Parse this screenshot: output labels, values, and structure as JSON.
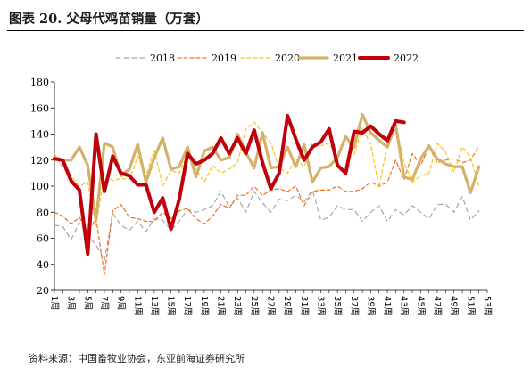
{
  "header": {
    "title": "图表 20. 父母代鸡苗销量（万套）"
  },
  "footer": {
    "source": "资料来源：中国畜牧业协会，东亚前海证券研究所"
  },
  "chart_data": {
    "type": "line",
    "title": "",
    "xlabel": "",
    "ylabel": "",
    "ylim": [
      20,
      180
    ],
    "yticks": [
      20,
      40,
      60,
      80,
      100,
      120,
      140,
      160,
      180
    ],
    "xtick_labels": [
      "1周",
      "3周",
      "5周",
      "7周",
      "9周",
      "11周",
      "13周",
      "15周",
      "17周",
      "19周",
      "21周",
      "23周",
      "25周",
      "27周",
      "29周",
      "31周",
      "33周",
      "35周",
      "37周",
      "39周",
      "41周",
      "43周",
      "45周",
      "47周",
      "49周",
      "51周",
      "53周"
    ],
    "grid": false,
    "legend_position": "top",
    "series": [
      {
        "name": "2018",
        "color": "#a6a6a6",
        "dash": "dash-long",
        "x": [
          1,
          2,
          3,
          4,
          5,
          6,
          7,
          8,
          9,
          10,
          11,
          12,
          13,
          14,
          15,
          16,
          17,
          18,
          19,
          20,
          21,
          22,
          23,
          24,
          25,
          26,
          27,
          28,
          29,
          30,
          31,
          32,
          33,
          34,
          35,
          36,
          37,
          38,
          39,
          40,
          41,
          42,
          43,
          44,
          45,
          46,
          47,
          48,
          49,
          50,
          51,
          52
        ],
        "values": [
          70,
          69,
          59,
          72,
          62,
          55,
          43,
          79,
          70,
          66,
          73,
          65,
          75,
          74,
          66,
          73,
          82,
          80,
          82,
          85,
          96,
          84,
          91,
          80,
          96,
          87,
          80,
          90,
          89,
          93,
          88,
          97,
          74,
          76,
          85,
          82,
          82,
          73,
          80,
          85,
          73,
          82,
          78,
          85,
          80,
          75,
          86,
          86,
          80,
          92,
          74,
          81
        ]
      },
      {
        "name": "2019",
        "color": "#f07025",
        "dash": "dash",
        "x": [
          1,
          2,
          3,
          4,
          5,
          6,
          7,
          8,
          9,
          10,
          11,
          12,
          13,
          14,
          15,
          16,
          17,
          18,
          19,
          20,
          21,
          22,
          23,
          24,
          25,
          26,
          27,
          28,
          29,
          30,
          31,
          32,
          33,
          34,
          35,
          36,
          37,
          38,
          39,
          40,
          41,
          42,
          43,
          44,
          45,
          46,
          47,
          48,
          49,
          50,
          51,
          52
        ],
        "values": [
          80,
          77,
          71,
          76,
          65,
          75,
          32,
          81,
          86,
          76,
          75,
          73,
          73,
          80,
          75,
          81,
          83,
          75,
          71,
          77,
          86,
          83,
          93,
          93,
          100,
          93,
          97,
          98,
          96,
          100,
          85,
          96,
          97,
          97,
          100,
          96,
          96,
          98,
          103,
          100,
          103,
          120,
          105,
          125,
          116,
          130,
          118,
          120,
          121,
          118,
          120,
          131
        ]
      },
      {
        "name": "2020",
        "color": "#f5c518",
        "dash": "dash",
        "x": [
          1,
          2,
          3,
          4,
          5,
          6,
          7,
          8,
          9,
          10,
          11,
          12,
          13,
          14,
          15,
          16,
          17,
          18,
          19,
          20,
          21,
          22,
          23,
          24,
          25,
          26,
          27,
          28,
          29,
          30,
          31,
          32,
          33,
          34,
          35,
          36,
          37,
          38,
          39,
          40,
          41,
          42,
          43,
          44,
          45,
          46,
          47,
          48,
          49,
          50,
          51,
          52
        ],
        "values": [
          125,
          114,
          108,
          100,
          103,
          70,
          110,
          104,
          106,
          105,
          123,
          108,
          128,
          100,
          112,
          110,
          125,
          113,
          103,
          116,
          110,
          113,
          118,
          144,
          149,
          141,
          133,
          114,
          110,
          121,
          115,
          133,
          131,
          133,
          122,
          138,
          124,
          145,
          132,
          99,
          133,
          148,
          118,
          103,
          108,
          110,
          133,
          126,
          111,
          130,
          122,
          100
        ]
      },
      {
        "name": "2021",
        "color": "#d4b169",
        "dash": "solid",
        "x": [
          1,
          2,
          3,
          4,
          5,
          6,
          7,
          8,
          9,
          10,
          11,
          12,
          13,
          14,
          15,
          16,
          17,
          18,
          19,
          20,
          21,
          22,
          23,
          24,
          25,
          26,
          27,
          28,
          29,
          30,
          31,
          32,
          33,
          34,
          35,
          36,
          37,
          38,
          39,
          40,
          41,
          42,
          43,
          44,
          45,
          46,
          47,
          48,
          49,
          50,
          51,
          52
        ],
        "values": [
          122,
          120,
          120,
          130,
          116,
          74,
          133,
          130,
          108,
          113,
          132,
          103,
          122,
          137,
          113,
          115,
          130,
          107,
          127,
          130,
          120,
          122,
          140,
          126,
          114,
          141,
          114,
          115,
          130,
          115,
          132,
          103,
          114,
          115,
          122,
          138,
          130,
          155,
          141,
          135,
          130,
          147,
          107,
          105,
          121,
          131,
          121,
          117,
          115,
          115,
          95,
          115
        ]
      },
      {
        "name": "2022",
        "color": "#c0000c",
        "dash": "solid",
        "x": [
          1,
          2,
          3,
          4,
          5,
          6,
          7,
          8,
          9,
          10,
          11,
          12,
          13,
          14,
          15,
          16,
          17,
          18,
          19,
          20,
          21,
          22,
          23,
          24,
          25,
          26,
          27,
          28,
          29,
          30,
          31,
          32,
          33,
          34,
          35,
          36,
          37,
          38,
          39,
          40,
          41,
          42,
          43
        ],
        "values": [
          121,
          120,
          104,
          97,
          48,
          140,
          96,
          123,
          110,
          108,
          101,
          101,
          80,
          91,
          67,
          90,
          125,
          117,
          120,
          125,
          137,
          125,
          137,
          125,
          143,
          118,
          98,
          110,
          154,
          136,
          120,
          130,
          134,
          144,
          116,
          110,
          142,
          141,
          146,
          140,
          135,
          150,
          149
        ]
      }
    ]
  }
}
